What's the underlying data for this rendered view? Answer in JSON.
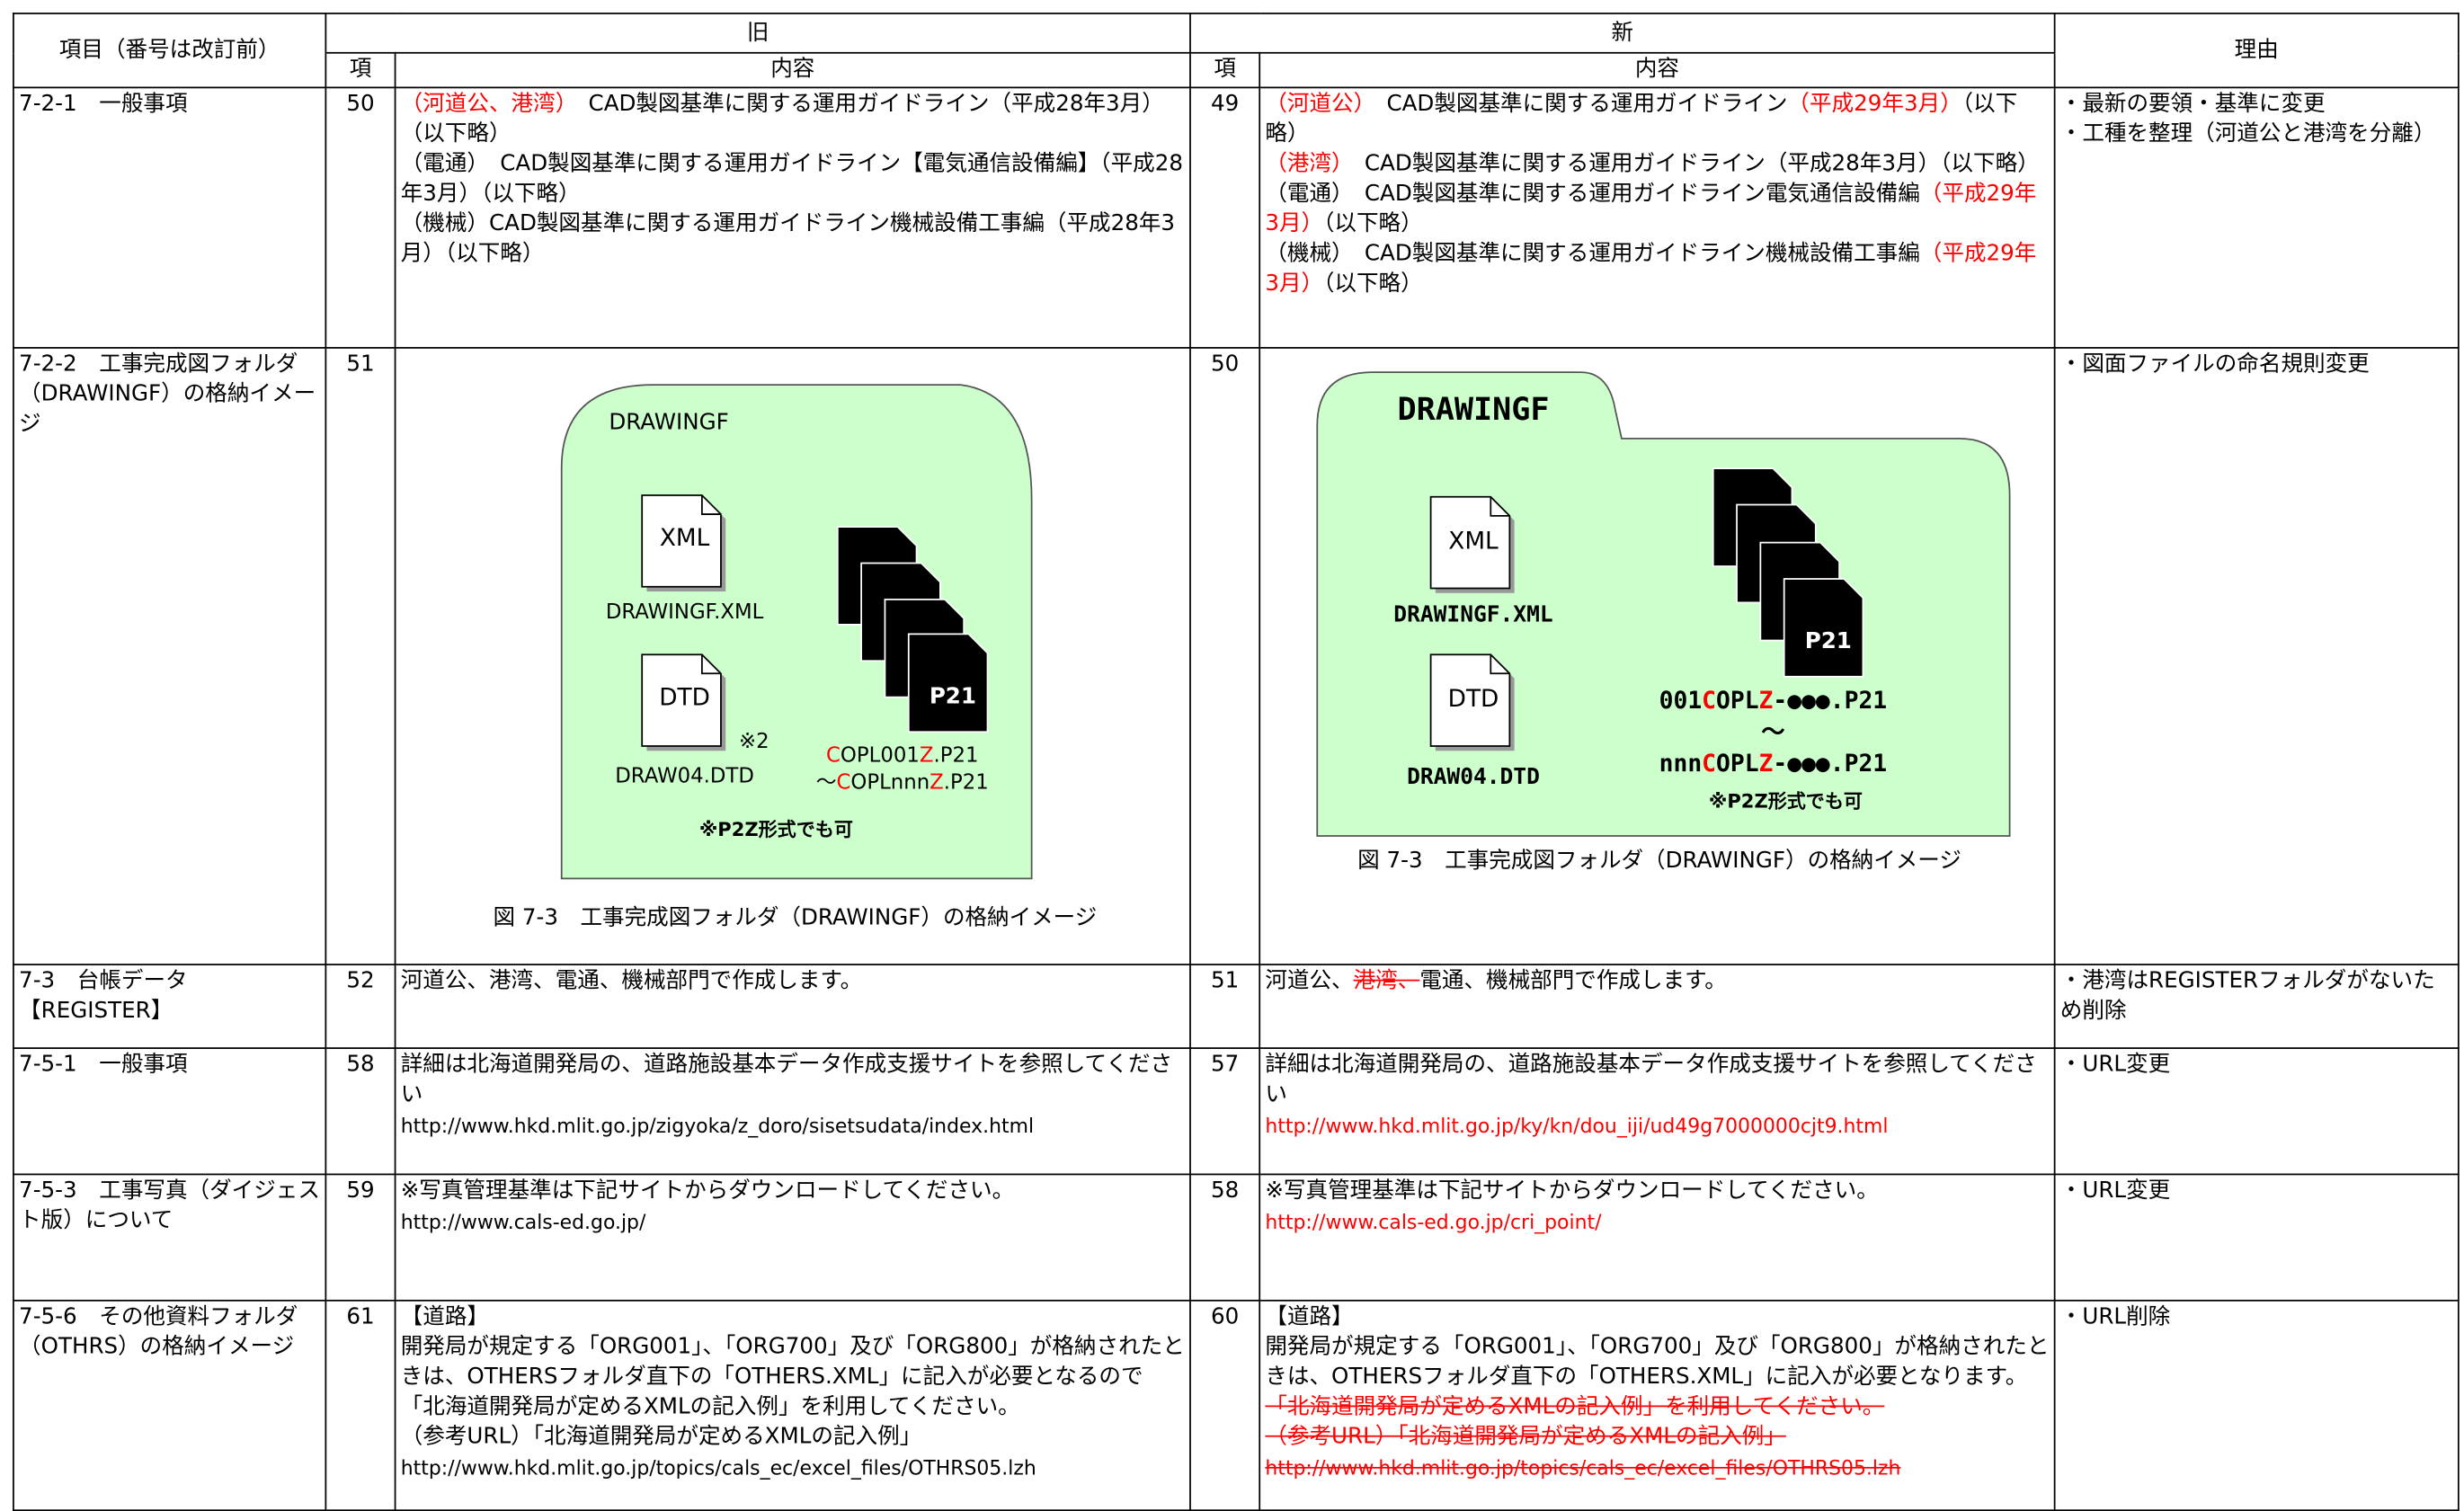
{
  "header": {
    "item": "項目（番号は改訂前）",
    "old": "旧",
    "new": "新",
    "no": "項",
    "content": "内容",
    "reason": "理由"
  },
  "rows": [
    {
      "item": "7-2-1　一般事項",
      "old": {
        "no": 50,
        "content": [
          [
            {
              "text": "（河道公、港湾）",
              "color": "#ff0000"
            },
            "　CAD製図基準に関する運用ガイドライン（平成28年3月）（以下略）"
          ],
          [
            "（電通）　CAD製図基準に関する運用ガイドライン【電気通信設備編】（平成28年3月）（以下略）"
          ],
          [
            "（機械）CAD製図基準に関する運用ガイドライン機械設備工事編（平成28年3月）（以下略）"
          ]
        ]
      },
      "new": {
        "no": 49,
        "content": [
          [
            {
              "text": "（河道公）",
              "color": "#ff0000"
            },
            "　CAD製図基準に関する運用ガイドライン",
            {
              "text": "（平成29年3月）",
              "color": "#ff0000"
            },
            "（以下略）"
          ],
          [
            {
              "text": "（港湾）",
              "color": "#ff0000"
            },
            "　CAD製図基準に関する運用ガイドライン（平成28年3月）（以下略）"
          ],
          [
            "（電通）　CAD製図基準に関する運用ガイドライン電気通信設備編",
            {
              "text": "（平成29年3月）",
              "color": "#ff0000"
            },
            "（以下略）"
          ],
          [
            "（機械）　CAD製図基準に関する運用ガイドライン機械設備工事編",
            {
              "text": "（平成29年3月）",
              "color": "#ff0000"
            },
            "（以下略）"
          ]
        ]
      },
      "reason": [
        "・最新の要領・基準に変更",
        "・工種を整理（河道公と港湾を分離）"
      ]
    },
    {
      "item": "7-2-2　工事完成図フォルダ（DRAWINGF）の格納イメージ",
      "old": {
        "no": 51,
        "figure": {
          "folder": "DRAWINGF",
          "xml_icon": "XML",
          "xml_file": "DRAWINGF.XML",
          "dtd_icon": "DTD",
          "dtd_file": "DRAW04.DTD",
          "mark": "※2",
          "p21": "P21",
          "files": [
            [
              {
                "text": "C",
                "color": "#ff0000"
              },
              "OPL001",
              {
                "text": "Z",
                "color": "#ff0000"
              },
              ".P21"
            ],
            [
              "～",
              {
                "text": "C",
                "color": "#ff0000"
              },
              "OPLnnn",
              {
                "text": "Z",
                "color": "#ff0000"
              },
              ".P21"
            ]
          ],
          "note": "※P2Z形式でも可",
          "caption": "図 7-3　工事完成図フォルダ（DRAWINGF）の格納イメージ"
        }
      },
      "new": {
        "no": 50,
        "figure": {
          "folder": "DRAWINGF",
          "xml_icon": "XML",
          "xml_file": "DRAWINGF.XML",
          "dtd_icon": "DTD",
          "dtd_file": "DRAW04.DTD",
          "p21": "P21",
          "files": [
            [
              "001",
              {
                "text": "C",
                "color": "#ff0000"
              },
              "OPL",
              {
                "text": "Z",
                "color": "#ff0000"
              },
              "-●●●.P21"
            ],
            [
              "～"
            ],
            [
              "nnn",
              {
                "text": "C",
                "color": "#ff0000"
              },
              "OPL",
              {
                "text": "Z",
                "color": "#ff0000"
              },
              "-●●●.P21"
            ]
          ],
          "note": "※P2Z形式でも可",
          "caption": "図 7-3　工事完成図フォルダ（DRAWINGF）の格納イメージ"
        }
      },
      "reason": [
        "・図面ファイルの命名規則変更"
      ]
    },
    {
      "item": "7-3　台帳データ【REGISTER】",
      "old": {
        "no": 52,
        "content": [
          [
            "河道公、港湾、電通、機械部門で作成します。"
          ]
        ]
      },
      "new": {
        "no": 51,
        "content": [
          [
            "河道公、",
            {
              "text": "港湾、",
              "color": "#ff0000",
              "strike": true
            },
            "電通、機械部門で作成します。"
          ]
        ]
      },
      "reason": [
        "・港湾はREGISTERフォルダがないため削除"
      ]
    },
    {
      "item": "7-5-1　一般事項",
      "old": {
        "no": 58,
        "content": [
          [
            "詳細は北海道開発局の、道路施設基本データ作成支援サイトを参照してください"
          ],
          [
            {
              "text": "http://www.hkd.mlit.go.jp/zigyoka/z_doro/sisetsudata/index.html",
              "small": true
            }
          ]
        ]
      },
      "new": {
        "no": 57,
        "content": [
          [
            "詳細は北海道開発局の、道路施設基本データ作成支援サイトを参照してください"
          ],
          [
            {
              "text": "http://www.hkd.mlit.go.jp/ky/kn/dou_iji/ud49g7000000cjt9.html",
              "small": true,
              "color": "#ff0000"
            }
          ]
        ]
      },
      "reason": [
        "・URL変更"
      ]
    },
    {
      "item": "7-5-3　工事写真（ダイジェスト版）について",
      "old": {
        "no": 59,
        "content": [
          [
            "※写真管理基準は下記サイトからダウンロードしてください。"
          ],
          [
            {
              "text": "http://www.cals-ed.go.jp/",
              "small": true
            }
          ]
        ]
      },
      "new": {
        "no": 58,
        "content": [
          [
            "※写真管理基準は下記サイトからダウンロードしてください。"
          ],
          [
            {
              "text": "http://www.cals-ed.go.jp/cri_point/",
              "small": true,
              "color": "#ff0000"
            }
          ]
        ]
      },
      "reason": [
        "・URL変更"
      ]
    },
    {
      "item": "7-5-6　その他資料フォルダ（OTHRS）の格納イメージ",
      "old": {
        "no": 61,
        "content": [
          [
            "【道路】"
          ],
          [
            "開発局が規定する「ORG001」、「ORG700」及び「ORG800」が格納されたときは、OTHERSフォルダ直下の「OTHERS.XML」に記入が必要となるので「北海道開発局が定めるXMLの記入例」を利用してください。"
          ],
          [
            "（参考URL）「北海道開発局が定めるXMLの記入例」"
          ],
          [
            {
              "text": "http://www.hkd.mlit.go.jp/topics/cals_ec/excel_files/OTHRS05.lzh",
              "small": true
            }
          ]
        ]
      },
      "new": {
        "no": 60,
        "content": [
          [
            "【道路】"
          ],
          [
            "開発局が規定する「ORG001」、「ORG700」及び「ORG800」が格納されたときは、OTHERSフォルダ直下の「OTHERS.XML」に記入が必要となります。"
          ],
          [
            {
              "text": "「北海道開発局が定めるXMLの記入例」を利用してください。",
              "color": "#ff0000",
              "strike": true
            }
          ],
          [
            {
              "text": "（参考URL）「北海道開発局が定めるXMLの記入例」",
              "color": "#ff0000",
              "strike": true
            }
          ],
          [
            {
              "text": "http://www.hkd.mlit.go.jp/topics/cals_ec/excel_files/OTHRS05.lzh",
              "small": true,
              "color": "#ff0000",
              "strike": true
            }
          ]
        ]
      },
      "reason": [
        "・URL削除"
      ]
    }
  ]
}
